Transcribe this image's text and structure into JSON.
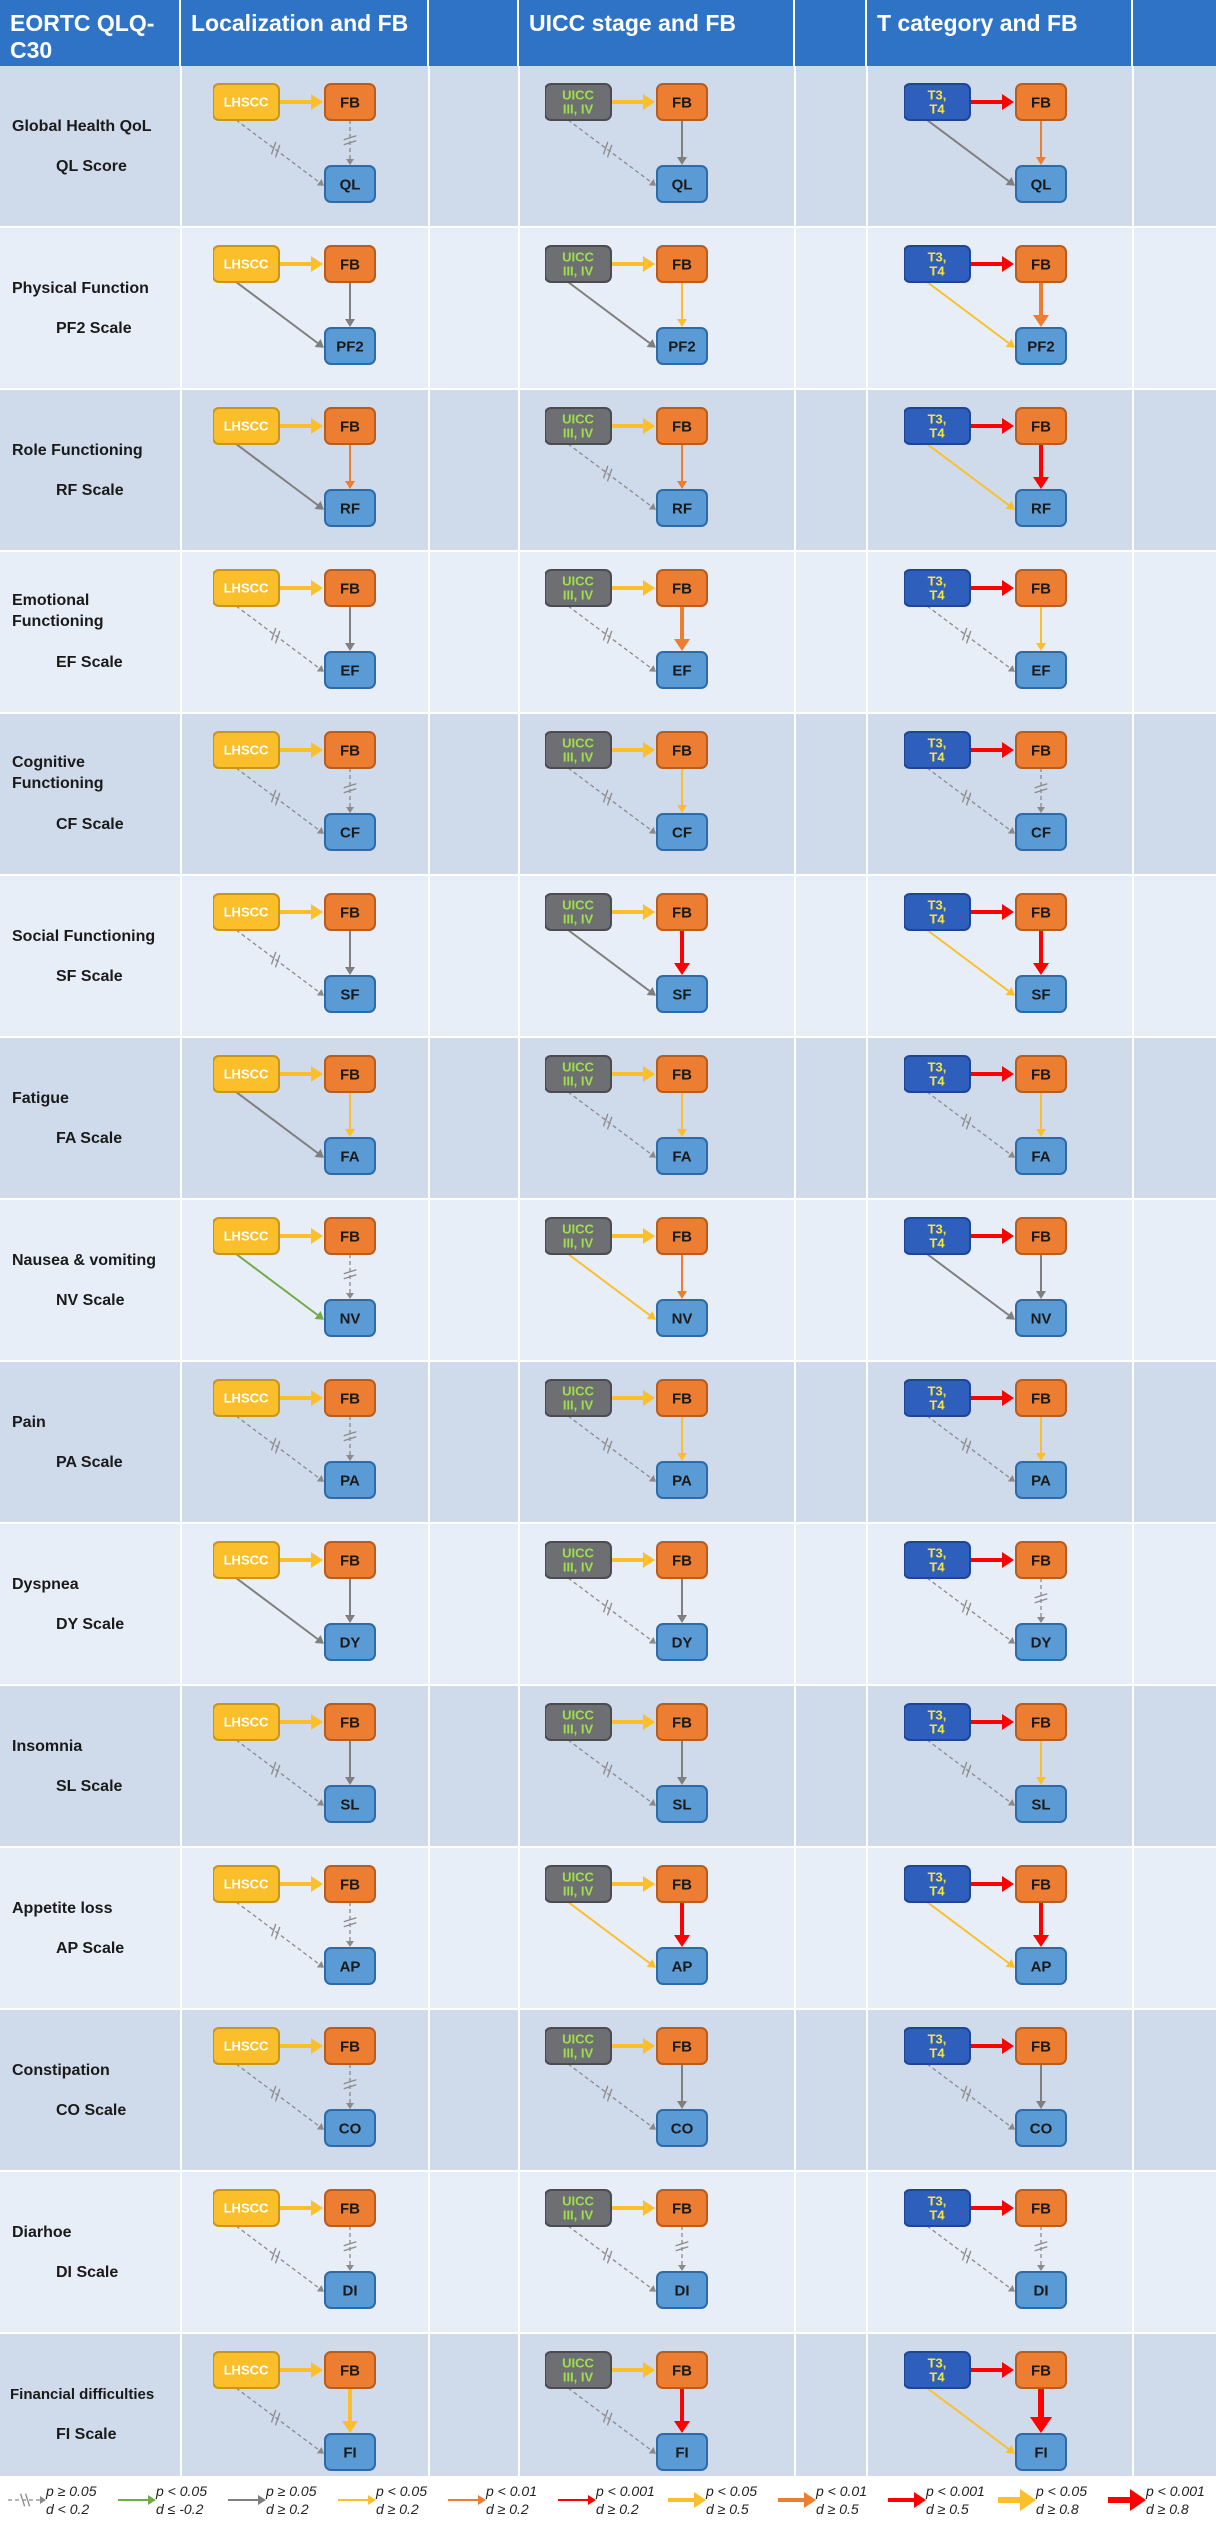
{
  "header": {
    "col0": "EORTC QLQ-C30",
    "col1": "Localization and FB",
    "col2": "UICC stage and FB",
    "col3": "T category and FB"
  },
  "nodes": {
    "lhscc": "LHSCC",
    "uicc_line1": "UICC",
    "uicc_line2": "III, IV",
    "t_line1": "T3,",
    "t_line2": "T4",
    "fb": "FB"
  },
  "colors": {
    "header_bg": "#2f73c6",
    "row_dark": "#cfdaea",
    "row_light": "#e8eef7",
    "lhscc_fill": "#fbbf2b",
    "uicc_fill": "#6d6f73",
    "uicc_text": "#9fe04a",
    "t_fill": "#2f5fbd",
    "t_text": "#f5e63c",
    "fb_fill": "#ed7d31",
    "out_fill": "#5b9bd5",
    "gray": "#7f7f7f",
    "green": "#70ad47",
    "yellow": "#fbbf2b",
    "orange": "#ed7d31",
    "red": "#ff0000"
  },
  "rows": [
    {
      "label": "Global Health QoL",
      "scale": "QL Score",
      "out": "QL",
      "diag": [
        {
          "ab": {
            "c": "yellow",
            "w": 3
          },
          "bc": {
            "c": "ns",
            "w": 1
          },
          "ac": {
            "c": "ns",
            "w": 1
          }
        },
        {
          "ab": {
            "c": "yellow",
            "w": 3
          },
          "bc": {
            "c": "gray",
            "w": 2
          },
          "ac": {
            "c": "ns",
            "w": 1
          }
        },
        {
          "ab": {
            "c": "red",
            "w": 3
          },
          "bc": {
            "c": "orange",
            "w": 2
          },
          "ac": {
            "c": "gray",
            "w": 2
          }
        }
      ]
    },
    {
      "label": "Physical Function",
      "scale": "PF2 Scale",
      "out": "PF2",
      "diag": [
        {
          "ab": {
            "c": "yellow",
            "w": 3
          },
          "bc": {
            "c": "gray",
            "w": 2
          },
          "ac": {
            "c": "gray",
            "w": 2
          }
        },
        {
          "ab": {
            "c": "yellow",
            "w": 3
          },
          "bc": {
            "c": "yellow",
            "w": 2
          },
          "ac": {
            "c": "gray",
            "w": 2
          }
        },
        {
          "ab": {
            "c": "red",
            "w": 3
          },
          "bc": {
            "c": "orange",
            "w": 3
          },
          "ac": {
            "c": "yellow",
            "w": 2
          }
        }
      ]
    },
    {
      "label": "Role Functioning",
      "scale": "RF Scale",
      "out": "RF",
      "diag": [
        {
          "ab": {
            "c": "yellow",
            "w": 3
          },
          "bc": {
            "c": "orange",
            "w": 2
          },
          "ac": {
            "c": "gray",
            "w": 2
          }
        },
        {
          "ab": {
            "c": "yellow",
            "w": 3
          },
          "bc": {
            "c": "orange",
            "w": 2
          },
          "ac": {
            "c": "ns",
            "w": 1
          }
        },
        {
          "ab": {
            "c": "red",
            "w": 3
          },
          "bc": {
            "c": "red",
            "w": 3
          },
          "ac": {
            "c": "yellow",
            "w": 2
          }
        }
      ]
    },
    {
      "label": "Emotional Functioning",
      "scale": "EF Scale",
      "out": "EF",
      "diag": [
        {
          "ab": {
            "c": "yellow",
            "w": 3
          },
          "bc": {
            "c": "gray",
            "w": 2
          },
          "ac": {
            "c": "ns",
            "w": 1
          }
        },
        {
          "ab": {
            "c": "yellow",
            "w": 3
          },
          "bc": {
            "c": "orange",
            "w": 3
          },
          "ac": {
            "c": "ns",
            "w": 1
          }
        },
        {
          "ab": {
            "c": "red",
            "w": 3
          },
          "bc": {
            "c": "yellow",
            "w": 2
          },
          "ac": {
            "c": "ns",
            "w": 1
          }
        }
      ]
    },
    {
      "label": "Cognitive Functioning",
      "scale": "CF Scale",
      "out": "CF",
      "diag": [
        {
          "ab": {
            "c": "yellow",
            "w": 3
          },
          "bc": {
            "c": "ns",
            "w": 1
          },
          "ac": {
            "c": "ns",
            "w": 1
          }
        },
        {
          "ab": {
            "c": "yellow",
            "w": 3
          },
          "bc": {
            "c": "yellow",
            "w": 2
          },
          "ac": {
            "c": "ns",
            "w": 1
          }
        },
        {
          "ab": {
            "c": "red",
            "w": 3
          },
          "bc": {
            "c": "ns",
            "w": 1
          },
          "ac": {
            "c": "ns",
            "w": 1
          }
        }
      ]
    },
    {
      "label": "Social Functioning",
      "scale": "SF Scale",
      "out": "SF",
      "diag": [
        {
          "ab": {
            "c": "yellow",
            "w": 3
          },
          "bc": {
            "c": "gray",
            "w": 2
          },
          "ac": {
            "c": "ns",
            "w": 1
          }
        },
        {
          "ab": {
            "c": "yellow",
            "w": 3
          },
          "bc": {
            "c": "red",
            "w": 3
          },
          "ac": {
            "c": "gray",
            "w": 2
          }
        },
        {
          "ab": {
            "c": "red",
            "w": 3
          },
          "bc": {
            "c": "red",
            "w": 3
          },
          "ac": {
            "c": "yellow",
            "w": 2
          }
        }
      ]
    },
    {
      "label": "Fatigue",
      "scale": "FA Scale",
      "out": "FA",
      "diag": [
        {
          "ab": {
            "c": "yellow",
            "w": 3
          },
          "bc": {
            "c": "yellow",
            "w": 2
          },
          "ac": {
            "c": "gray",
            "w": 2
          }
        },
        {
          "ab": {
            "c": "yellow",
            "w": 3
          },
          "bc": {
            "c": "yellow",
            "w": 2
          },
          "ac": {
            "c": "ns",
            "w": 1
          }
        },
        {
          "ab": {
            "c": "red",
            "w": 3
          },
          "bc": {
            "c": "yellow",
            "w": 2
          },
          "ac": {
            "c": "ns",
            "w": 1
          }
        }
      ]
    },
    {
      "label": "Nausea & vomiting",
      "scale": "NV Scale",
      "out": "NV",
      "diag": [
        {
          "ab": {
            "c": "yellow",
            "w": 3
          },
          "bc": {
            "c": "ns",
            "w": 1
          },
          "ac": {
            "c": "green",
            "w": 2
          }
        },
        {
          "ab": {
            "c": "yellow",
            "w": 3
          },
          "bc": {
            "c": "orange",
            "w": 2
          },
          "ac": {
            "c": "yellow",
            "w": 2
          }
        },
        {
          "ab": {
            "c": "red",
            "w": 3
          },
          "bc": {
            "c": "gray",
            "w": 2
          },
          "ac": {
            "c": "gray",
            "w": 2
          }
        }
      ]
    },
    {
      "label": "Pain",
      "scale": "PA Scale",
      "out": "PA",
      "diag": [
        {
          "ab": {
            "c": "yellow",
            "w": 3
          },
          "bc": {
            "c": "ns",
            "w": 1
          },
          "ac": {
            "c": "ns",
            "w": 1
          }
        },
        {
          "ab": {
            "c": "yellow",
            "w": 3
          },
          "bc": {
            "c": "yellow",
            "w": 2
          },
          "ac": {
            "c": "ns",
            "w": 1
          }
        },
        {
          "ab": {
            "c": "red",
            "w": 3
          },
          "bc": {
            "c": "yellow",
            "w": 2
          },
          "ac": {
            "c": "ns",
            "w": 1
          }
        }
      ]
    },
    {
      "label": "Dyspnea",
      "scale": "DY Scale",
      "out": "DY",
      "diag": [
        {
          "ab": {
            "c": "yellow",
            "w": 3
          },
          "bc": {
            "c": "gray",
            "w": 2
          },
          "ac": {
            "c": "gray",
            "w": 2
          }
        },
        {
          "ab": {
            "c": "yellow",
            "w": 3
          },
          "bc": {
            "c": "gray",
            "w": 2
          },
          "ac": {
            "c": "ns",
            "w": 1
          }
        },
        {
          "ab": {
            "c": "red",
            "w": 3
          },
          "bc": {
            "c": "ns",
            "w": 1
          },
          "ac": {
            "c": "ns",
            "w": 1
          }
        }
      ]
    },
    {
      "label": "Insomnia",
      "scale": "SL Scale",
      "out": "SL",
      "diag": [
        {
          "ab": {
            "c": "yellow",
            "w": 3
          },
          "bc": {
            "c": "gray",
            "w": 2
          },
          "ac": {
            "c": "ns",
            "w": 1
          }
        },
        {
          "ab": {
            "c": "yellow",
            "w": 3
          },
          "bc": {
            "c": "gray",
            "w": 2
          },
          "ac": {
            "c": "ns",
            "w": 1
          }
        },
        {
          "ab": {
            "c": "red",
            "w": 3
          },
          "bc": {
            "c": "yellow",
            "w": 2
          },
          "ac": {
            "c": "ns",
            "w": 1
          }
        }
      ]
    },
    {
      "label": "Appetite loss",
      "scale": "AP Scale",
      "out": "AP",
      "diag": [
        {
          "ab": {
            "c": "yellow",
            "w": 3
          },
          "bc": {
            "c": "ns",
            "w": 1
          },
          "ac": {
            "c": "ns",
            "w": 1
          }
        },
        {
          "ab": {
            "c": "yellow",
            "w": 3
          },
          "bc": {
            "c": "red",
            "w": 3
          },
          "ac": {
            "c": "yellow",
            "w": 2
          }
        },
        {
          "ab": {
            "c": "red",
            "w": 3
          },
          "bc": {
            "c": "red",
            "w": 3
          },
          "ac": {
            "c": "yellow",
            "w": 2
          }
        }
      ]
    },
    {
      "label": "Constipation",
      "scale": "CO Scale",
      "out": "CO",
      "diag": [
        {
          "ab": {
            "c": "yellow",
            "w": 3
          },
          "bc": {
            "c": "ns",
            "w": 1
          },
          "ac": {
            "c": "ns",
            "w": 1
          }
        },
        {
          "ab": {
            "c": "yellow",
            "w": 3
          },
          "bc": {
            "c": "gray",
            "w": 2
          },
          "ac": {
            "c": "ns",
            "w": 1
          }
        },
        {
          "ab": {
            "c": "red",
            "w": 3
          },
          "bc": {
            "c": "gray",
            "w": 2
          },
          "ac": {
            "c": "ns",
            "w": 1
          }
        }
      ]
    },
    {
      "label": "Diarhoe",
      "scale": "DI Scale",
      "out": "DI",
      "diag": [
        {
          "ab": {
            "c": "yellow",
            "w": 3
          },
          "bc": {
            "c": "ns",
            "w": 1
          },
          "ac": {
            "c": "ns",
            "w": 1
          }
        },
        {
          "ab": {
            "c": "yellow",
            "w": 3
          },
          "bc": {
            "c": "ns",
            "w": 1
          },
          "ac": {
            "c": "ns",
            "w": 1
          }
        },
        {
          "ab": {
            "c": "red",
            "w": 3
          },
          "bc": {
            "c": "ns",
            "w": 1
          },
          "ac": {
            "c": "ns",
            "w": 1
          }
        }
      ]
    },
    {
      "label": "Financial difficulties",
      "scale": "FI Scale",
      "out": "FI",
      "diag": [
        {
          "ab": {
            "c": "yellow",
            "w": 3
          },
          "bc": {
            "c": "yellow",
            "w": 3
          },
          "ac": {
            "c": "ns",
            "w": 1
          }
        },
        {
          "ab": {
            "c": "yellow",
            "w": 3
          },
          "bc": {
            "c": "red",
            "w": 3
          },
          "ac": {
            "c": "ns",
            "w": 1
          }
        },
        {
          "ab": {
            "c": "red",
            "w": 3
          },
          "bc": {
            "c": "red",
            "w": 4
          },
          "ac": {
            "c": "yellow",
            "w": 2
          }
        }
      ]
    }
  ],
  "legend": [
    {
      "p": "p ≥ 0.05",
      "d": "d < 0.2",
      "c": "ns",
      "w": 1
    },
    {
      "p": "p < 0.05",
      "d": "d ≤ -0.2",
      "c": "green",
      "w": 2
    },
    {
      "p": "p ≥ 0.05",
      "d": "d ≥ 0.2",
      "c": "gray",
      "w": 2
    },
    {
      "p": "p < 0.05",
      "d": "d ≥ 0.2",
      "c": "yellow",
      "w": 2
    },
    {
      "p": "p < 0.01",
      "d": "d ≥ 0.2",
      "c": "orange",
      "w": 2
    },
    {
      "p": "p < 0.001",
      "d": "d ≥ 0.2",
      "c": "red",
      "w": 2
    },
    {
      "p": "p < 0.05",
      "d": "d ≥ 0.5",
      "c": "yellow",
      "w": 3
    },
    {
      "p": "p < 0.01",
      "d": "d ≥ 0.5",
      "c": "orange",
      "w": 3
    },
    {
      "p": "p < 0.001",
      "d": "d ≥ 0.5",
      "c": "red",
      "w": 3
    },
    {
      "p": "p < 0.05",
      "d": "d ≥ 0.8",
      "c": "yellow",
      "w": 4
    },
    {
      "p": "p < 0.001",
      "d": "d ≥ 0.8",
      "c": "red",
      "w": 4
    }
  ]
}
